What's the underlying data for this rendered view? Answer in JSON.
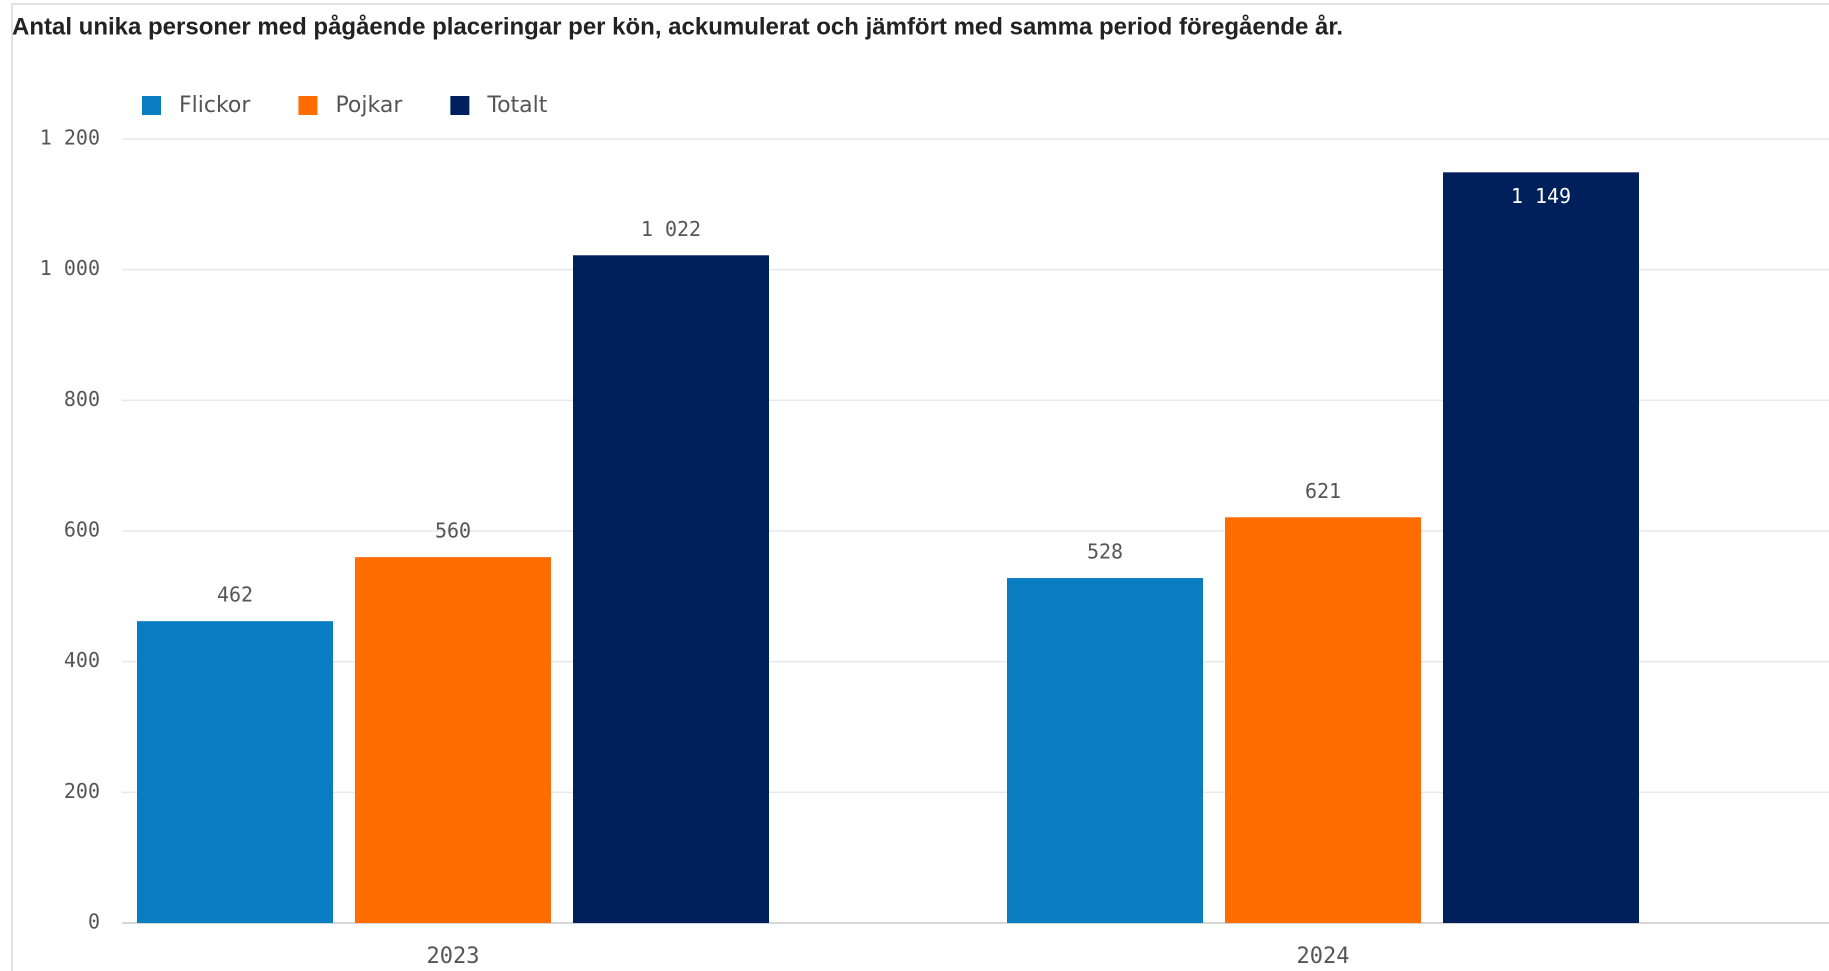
{
  "chart_data": {
    "type": "bar",
    "title": "Antal unika personer med pågående placeringar per kön, ackumulerat och jämfört med samma period föregående år.",
    "categories": [
      "2023",
      "2024"
    ],
    "series": [
      {
        "name": "Flickor",
        "color": "#0a7dc2",
        "values": [
          462,
          528
        ]
      },
      {
        "name": "Pojkar",
        "color": "#ff6c00",
        "values": [
          560,
          621
        ]
      },
      {
        "name": "Totalt",
        "color": "#00205b",
        "values": [
          1022,
          1149
        ],
        "value_labels": [
          "1 022",
          "1 149"
        ]
      }
    ],
    "ylim": [
      0,
      1200
    ],
    "yticks": [
      0,
      200,
      400,
      600,
      800,
      {
        "value": 1000,
        "label": "1 000"
      },
      {
        "value": 1200,
        "label": "1 200"
      }
    ],
    "grid": true,
    "legend": "top-left"
  }
}
